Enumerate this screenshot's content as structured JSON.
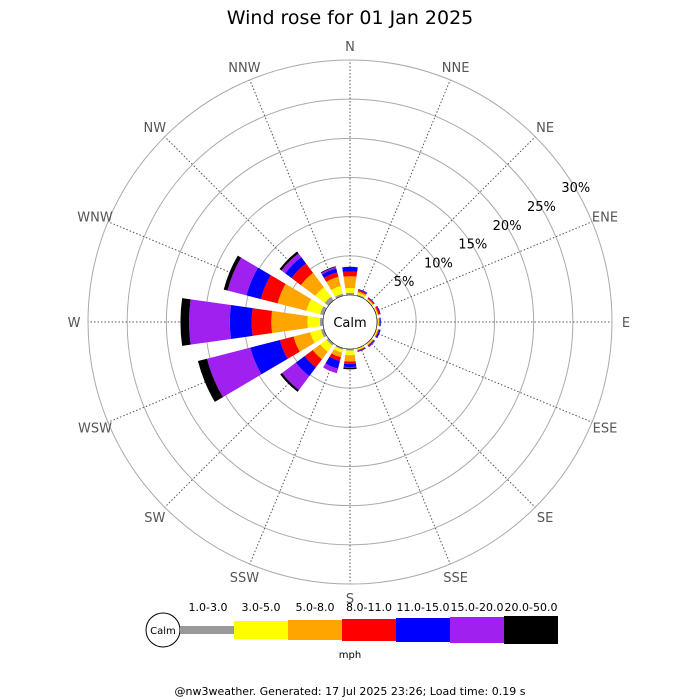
{
  "chart_data": {
    "type": "windrose",
    "title": "Wind rose for 01 Jan 2025",
    "directions": [
      "N",
      "NNE",
      "NE",
      "ENE",
      "E",
      "ESE",
      "SE",
      "SSE",
      "S",
      "SSW",
      "SW",
      "WSW",
      "W",
      "WNW",
      "NW",
      "NNW"
    ],
    "radial_ticks": [
      "5%",
      "10%",
      "15%",
      "20%",
      "25%",
      "30%"
    ],
    "radial_max": 30,
    "calm_label": "Calm",
    "unit": "mph",
    "speed_bins": [
      {
        "label": "1.0-3.0",
        "color": "#999999"
      },
      {
        "label": "3.0-5.0",
        "color": "#ffff00"
      },
      {
        "label": "5.0-8.0",
        "color": "#ffa500"
      },
      {
        "label": "8.0-11.0",
        "color": "#ff0000"
      },
      {
        "label": "11.0-15.0",
        "color": "#0000ff"
      },
      {
        "label": "15.0-20.0",
        "color": "#a020f0"
      },
      {
        "label": "20.0-50.0",
        "color": "#000000"
      }
    ],
    "series": [
      {
        "name": "1.0-3.0",
        "values": [
          0.3,
          0.2,
          0.1,
          0.1,
          0.1,
          0.1,
          0.1,
          0.1,
          0.2,
          0.2,
          0.3,
          0.4,
          0.4,
          0.5,
          0.6,
          0.3
        ]
      },
      {
        "name": "3.0-5.0",
        "values": [
          0.6,
          0.2,
          0.1,
          0.1,
          0.1,
          0.1,
          0.1,
          0.1,
          0.6,
          0.4,
          1.0,
          1.4,
          1.6,
          1.8,
          1.5,
          1.0
        ]
      },
      {
        "name": "5.0-8.0",
        "values": [
          1.5,
          0.2,
          0.1,
          0.1,
          0.1,
          0.1,
          0.1,
          0.1,
          0.8,
          0.6,
          1.2,
          2.2,
          4.6,
          3.8,
          2.3,
          1.2
        ]
      },
      {
        "name": "8.0-11.0",
        "values": [
          0.6,
          0.2,
          0.1,
          0.2,
          0.1,
          0.1,
          0.1,
          0.1,
          0.3,
          0.5,
          1.3,
          1.8,
          2.5,
          2.2,
          1.5,
          0.6
        ]
      },
      {
        "name": "11.0-15.0",
        "values": [
          0.6,
          0.1,
          0.1,
          0.1,
          0.1,
          0.2,
          0.1,
          0.1,
          0.4,
          1.0,
          1.4,
          3.9,
          2.8,
          1.9,
          1.0,
          0.5
        ]
      },
      {
        "name": "15.0-20.0",
        "values": [
          0.0,
          0.0,
          0.0,
          0.0,
          0.0,
          0.0,
          0.1,
          0.0,
          0.1,
          0.6,
          2.2,
          5.7,
          5.2,
          2.5,
          0.6,
          0.2
        ]
      },
      {
        "name": "20.0-50.0",
        "values": [
          0.0,
          0.0,
          0.0,
          0.0,
          0.0,
          0.0,
          0.0,
          0.0,
          0.2,
          0.0,
          0.3,
          1.2,
          1.1,
          0.5,
          0.3,
          0.1
        ]
      }
    ]
  },
  "footer": "@nw3weather. Generated: 17 Jul 2025 23:26; Load time: 0.19 s"
}
